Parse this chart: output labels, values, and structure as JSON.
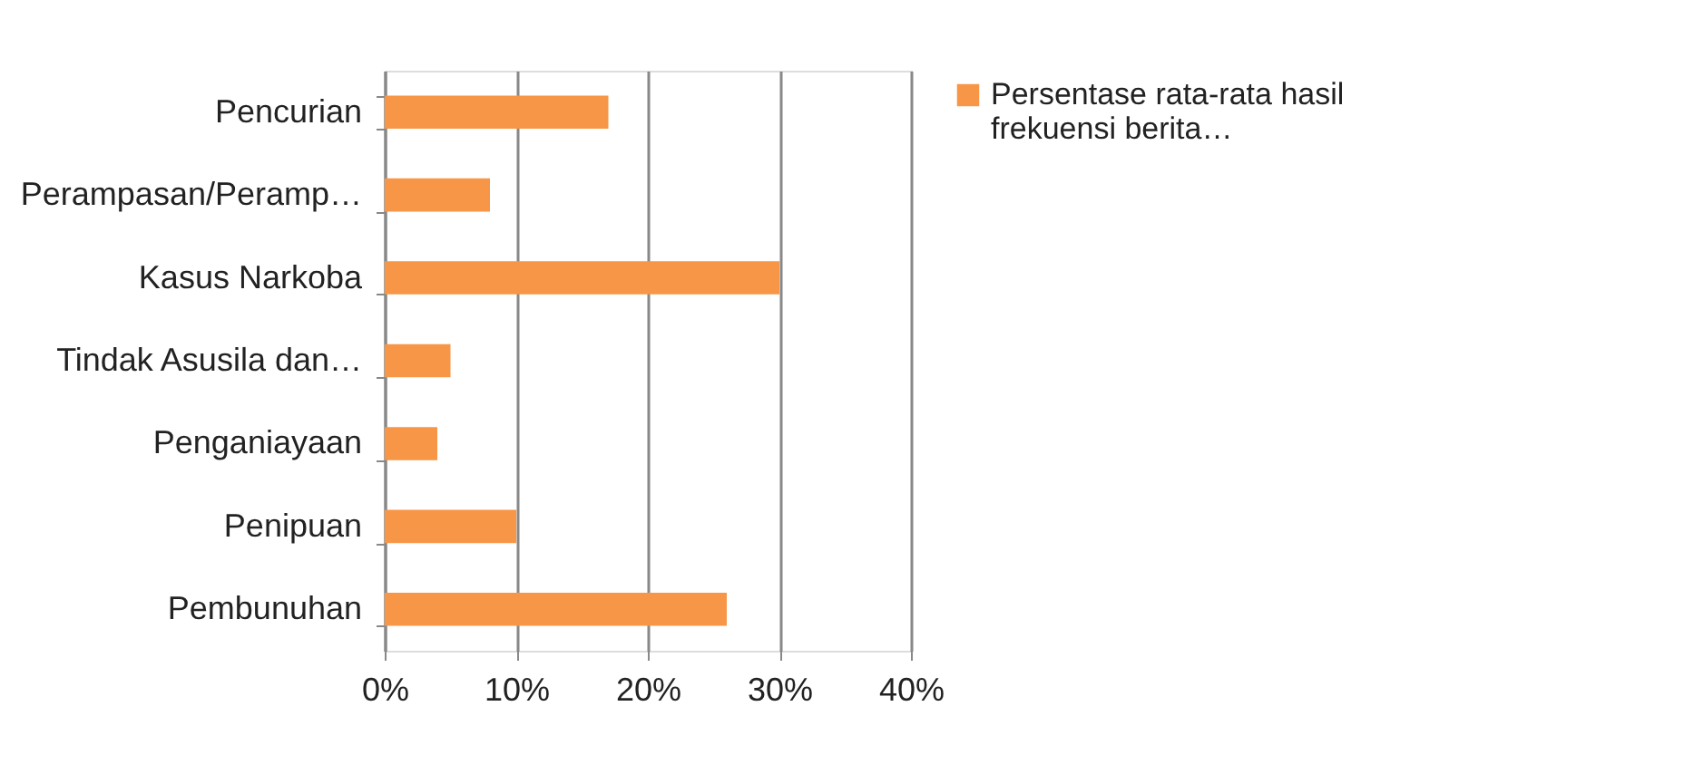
{
  "chart_data": {
    "type": "bar",
    "orientation": "horizontal",
    "categories": [
      "Pencurian",
      "Perampasan/Peramp…",
      "Kasus Narkoba",
      "Tindak Asusila dan…",
      "Penganiayaan",
      "Penipuan",
      "Pembunuhan"
    ],
    "series": [
      {
        "name": "Persentase rata-rata hasil frekuensi berita…",
        "color": "#f79646",
        "values": [
          17,
          8,
          30,
          5,
          4,
          10,
          26
        ]
      }
    ],
    "xlim": [
      0,
      40
    ],
    "xticks": [
      {
        "value": 0,
        "label": "0%"
      },
      {
        "value": 10,
        "label": "10%"
      },
      {
        "value": 20,
        "label": "20%"
      },
      {
        "value": 30,
        "label": "30%"
      },
      {
        "value": 40,
        "label": "40%"
      }
    ],
    "grid": "x",
    "legend": "right"
  }
}
